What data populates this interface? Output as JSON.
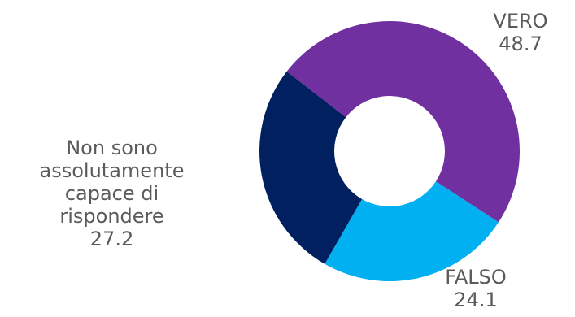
{
  "chart_data": {
    "type": "pie",
    "variant": "donut",
    "slices": [
      {
        "label": "VERO",
        "value": 48.7,
        "color": "#7030A0"
      },
      {
        "label": "FALSO",
        "value": 24.1,
        "color": "#00B0F0"
      },
      {
        "label": "Non sono assolutamente capace di rispondere",
        "value": 27.2,
        "color": "#002060"
      }
    ],
    "data_labels": [
      {
        "lines": [
          "VERO"
        ],
        "value": "48.7"
      },
      {
        "lines": [
          "FALSO"
        ],
        "value": "24.1"
      },
      {
        "lines": [
          "Non sono",
          "assolutamente",
          "capace di",
          "rispondere"
        ],
        "value": "27.2"
      }
    ]
  }
}
